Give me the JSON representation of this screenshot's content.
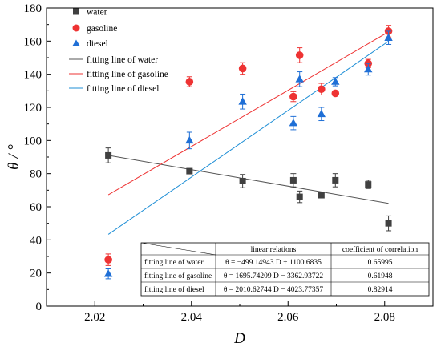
{
  "chart_data": {
    "type": "scatter",
    "xlabel": "D",
    "ylabel": "θ / °",
    "xlim": [
      2.01,
      2.09
    ],
    "ylim": [
      0,
      180
    ],
    "x_ticks": [
      "2.02",
      "2.04",
      "2.06",
      "2.08"
    ],
    "x_tick_values": [
      2.02,
      2.04,
      2.06,
      2.08
    ],
    "y_ticks": [
      "0",
      "20",
      "40",
      "60",
      "80",
      "100",
      "120",
      "140",
      "160",
      "180"
    ],
    "y_tick_values": [
      0,
      20,
      40,
      60,
      80,
      100,
      120,
      140,
      160,
      180
    ],
    "legend_position": "top-left",
    "series": [
      {
        "name": "water",
        "marker": "square",
        "color": "#404040",
        "points": [
          {
            "x": 2.0228,
            "y": 91,
            "err": 4.5
          },
          {
            "x": 2.0396,
            "y": 81.5,
            "err": 1.5
          },
          {
            "x": 2.0506,
            "y": 75.5,
            "err": 4
          },
          {
            "x": 2.0611,
            "y": 76,
            "err": 4
          },
          {
            "x": 2.0624,
            "y": 66,
            "err": 3.5
          },
          {
            "x": 2.0669,
            "y": 67,
            "err": 1.5
          },
          {
            "x": 2.0698,
            "y": 76,
            "err": 4
          },
          {
            "x": 2.0766,
            "y": 73.5,
            "err": 2.5
          },
          {
            "x": 2.0808,
            "y": 50,
            "err": 4.5
          }
        ]
      },
      {
        "name": "gasoline",
        "marker": "circle",
        "color": "#ee3333",
        "points": [
          {
            "x": 2.0228,
            "y": 28,
            "err": 3.5
          },
          {
            "x": 2.0396,
            "y": 135.5,
            "err": 3
          },
          {
            "x": 2.0506,
            "y": 143.5,
            "err": 3.5
          },
          {
            "x": 2.0611,
            "y": 126.5,
            "err": 3
          },
          {
            "x": 2.0624,
            "y": 151.5,
            "err": 4.5
          },
          {
            "x": 2.0669,
            "y": 131,
            "err": 3.5
          },
          {
            "x": 2.0698,
            "y": 128.5,
            "err": 1.5
          },
          {
            "x": 2.0766,
            "y": 146.5,
            "err": 2.5
          },
          {
            "x": 2.0808,
            "y": 166,
            "err": 3.5
          }
        ]
      },
      {
        "name": "diesel",
        "marker": "triangle",
        "color": "#1f6fd6",
        "points": [
          {
            "x": 2.0228,
            "y": 19.5,
            "err": 3
          },
          {
            "x": 2.0396,
            "y": 100,
            "err": 5
          },
          {
            "x": 2.0506,
            "y": 123.5,
            "err": 4.5
          },
          {
            "x": 2.0611,
            "y": 110.5,
            "err": 4
          },
          {
            "x": 2.0624,
            "y": 137,
            "err": 4.5
          },
          {
            "x": 2.0669,
            "y": 116,
            "err": 4
          },
          {
            "x": 2.0698,
            "y": 135.5,
            "err": 2.5
          },
          {
            "x": 2.0766,
            "y": 143,
            "err": 3.5
          },
          {
            "x": 2.0808,
            "y": 162,
            "err": 4
          }
        ]
      }
    ],
    "fit_lines": [
      {
        "name": "fitting line of water",
        "color": "#555555",
        "slope": -499.14943,
        "intercept": 1100.6835,
        "x_range": [
          2.0228,
          2.0808
        ]
      },
      {
        "name": "fitting line of gasoline",
        "color": "#ee3333",
        "slope": 1695.74209,
        "intercept": -3362.93722,
        "x_range": [
          2.0228,
          2.0808
        ]
      },
      {
        "name": "fitting line of diesel",
        "color": "#1f8fd6",
        "slope": 2010.62744,
        "intercept": -4023.77357,
        "x_range": [
          2.0228,
          2.0808
        ]
      }
    ],
    "table": {
      "headers": [
        "",
        "linear relations",
        "coefficient of correlation"
      ],
      "rows": [
        [
          "fitting line of water",
          "θ = −499.14943 D + 1100.6835",
          "0.65995"
        ],
        [
          "fitting line of gasoline",
          "θ = 1695.74209 D − 3362.93722",
          "0.61948"
        ],
        [
          "fitting line of diesel",
          "θ = 2010.62744 D − 4023.77357",
          "0.82914"
        ]
      ]
    }
  }
}
